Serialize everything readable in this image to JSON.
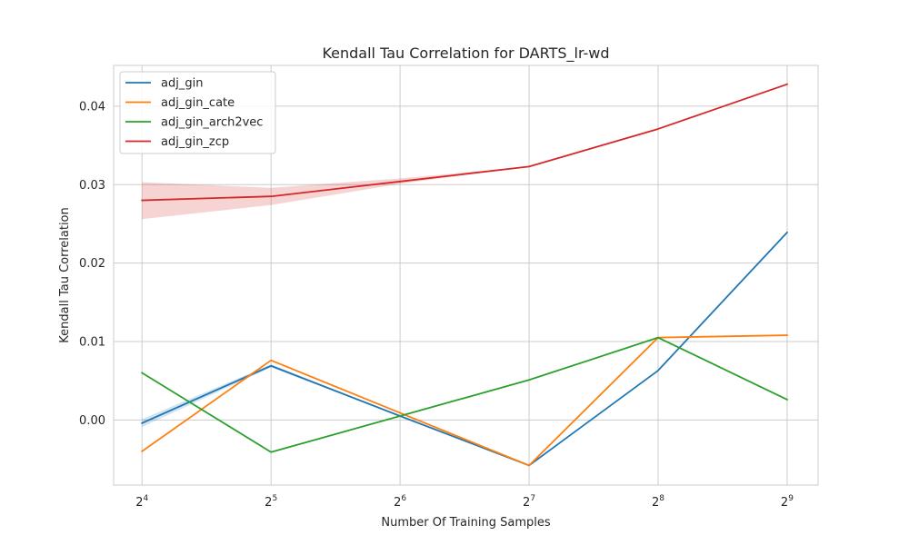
{
  "chart_data": {
    "type": "line",
    "title": "Kendall Tau Correlation for DARTS_lr-wd",
    "xlabel": "Number Of Training Samples",
    "ylabel": "Kendall Tau Correlation",
    "x": [
      16,
      32,
      64,
      128,
      256,
      512
    ],
    "x_scale": "log2",
    "x_tick_labels": [
      {
        "base": "2",
        "exp": "4"
      },
      {
        "base": "2",
        "exp": "5"
      },
      {
        "base": "2",
        "exp": "6"
      },
      {
        "base": "2",
        "exp": "7"
      },
      {
        "base": "2",
        "exp": "8"
      },
      {
        "base": "2",
        "exp": "9"
      }
    ],
    "ylim": [
      -0.0083,
      0.0452
    ],
    "y_ticks": [
      0.0,
      0.01,
      0.02,
      0.03,
      0.04
    ],
    "y_tick_labels": [
      "0.00",
      "0.01",
      "0.02",
      "0.03",
      "0.04"
    ],
    "grid": true,
    "legend_position": "top-left",
    "series": [
      {
        "name": "adj_gin",
        "color": "#1f77b4",
        "values": [
          -0.0004,
          0.0069,
          0.0005,
          -0.0058,
          0.0063,
          0.0239
        ],
        "band_lower": [
          -0.0009,
          0.0067,
          0.0005,
          -0.0058,
          0.0063,
          0.0239
        ],
        "band_upper": [
          0.0001,
          0.0071,
          0.0005,
          -0.0058,
          0.0063,
          0.0239
        ]
      },
      {
        "name": "adj_gin_cate",
        "color": "#ff7f0e",
        "values": [
          -0.004,
          0.0076,
          0.0009,
          -0.0058,
          0.0105,
          0.0108
        ]
      },
      {
        "name": "adj_gin_arch2vec",
        "color": "#2ca02c",
        "values": [
          0.006,
          -0.0041,
          0.0005,
          0.0051,
          0.0105,
          0.0026
        ]
      },
      {
        "name": "adj_gin_zcp",
        "color": "#d62728",
        "values": [
          0.028,
          0.0285,
          0.0304,
          0.0323,
          0.0371,
          0.0428
        ],
        "band_lower": [
          0.0256,
          0.0274,
          0.0301,
          0.0323,
          0.0371,
          0.0428
        ],
        "band_upper": [
          0.0303,
          0.0296,
          0.0308,
          0.0323,
          0.0371,
          0.0428
        ]
      }
    ]
  }
}
